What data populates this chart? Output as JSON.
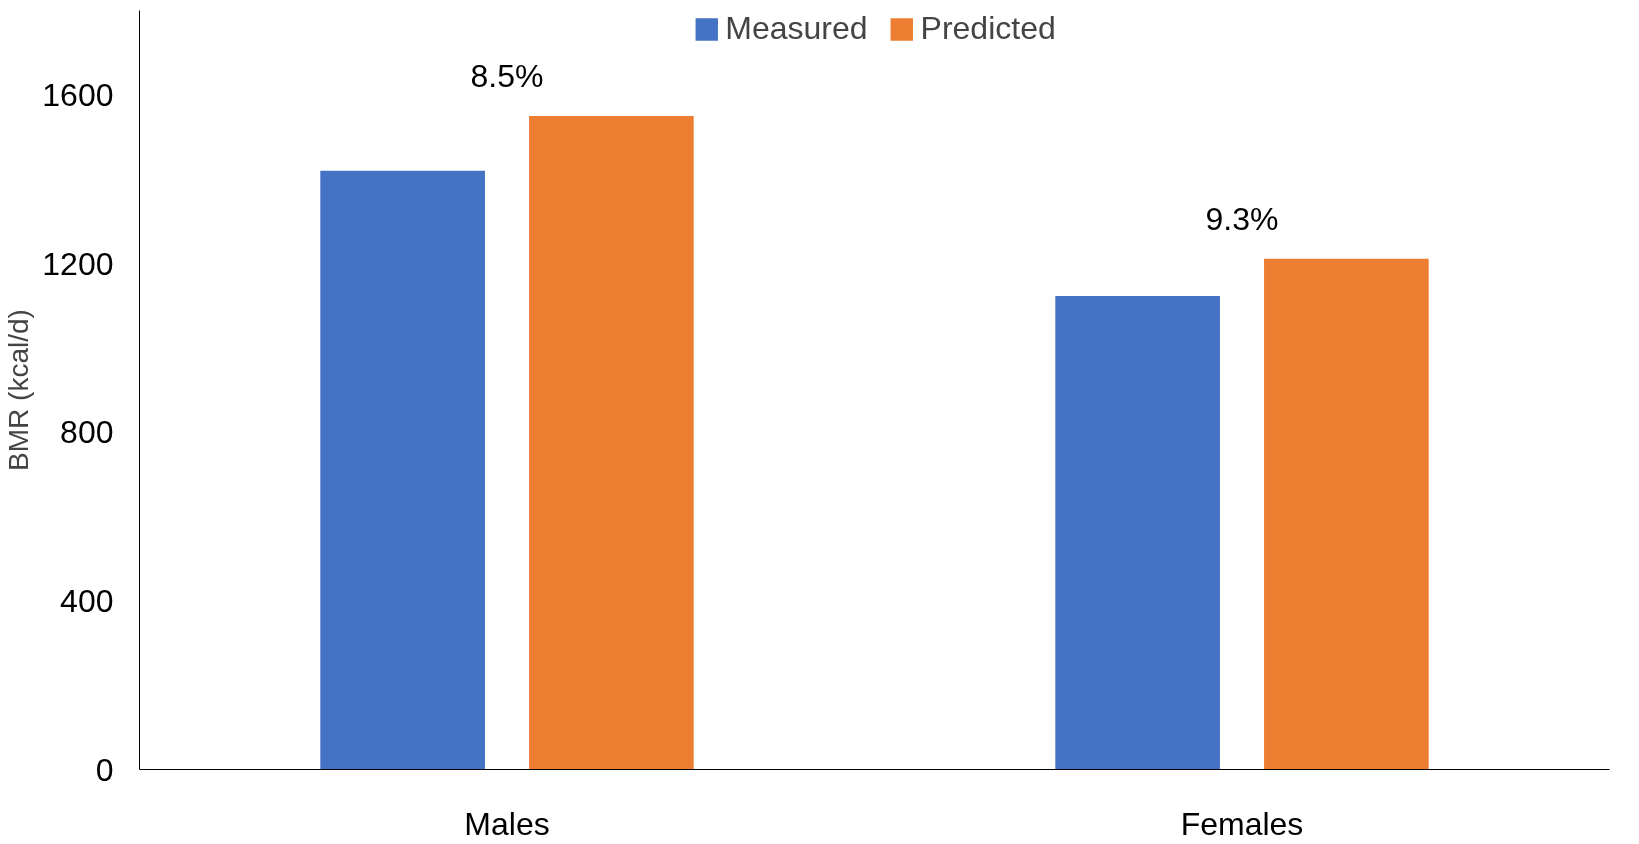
{
  "chart_data": {
    "type": "bar",
    "ylabel": "BMR (kcal/d)",
    "categories": [
      "Males",
      "Females"
    ],
    "series": [
      {
        "name": "Measured",
        "color": "#4472c4",
        "values": [
          1420,
          1123
        ]
      },
      {
        "name": "Predicted",
        "color": "#ed7d31",
        "values": [
          1550,
          1211
        ]
      }
    ],
    "ylim": [
      0,
      1800
    ],
    "yticks": [
      0,
      400,
      800,
      1200,
      1600
    ],
    "grid": false,
    "legend": "top",
    "annotations": [
      "8.5%",
      "9.3%"
    ]
  }
}
